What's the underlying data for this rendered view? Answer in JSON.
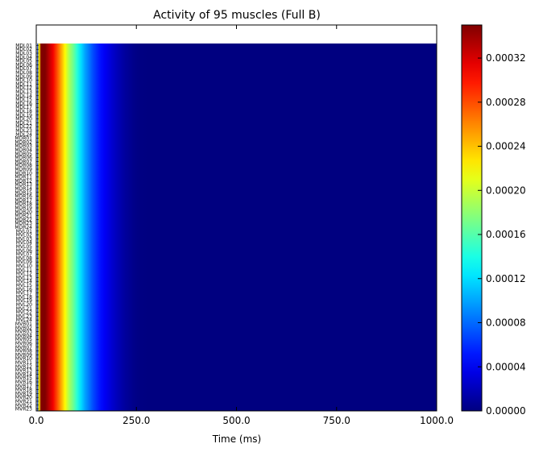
{
  "chart_data": {
    "type": "heatmap",
    "title": "Activity of 95 muscles (Full B)",
    "xlabel": "Time (ms)",
    "ylabel": "",
    "xlim": [
      0,
      1000
    ],
    "x_ticks": [
      "0.0",
      "250.0",
      "500.0",
      "750.0",
      "1000.0"
    ],
    "x_tick_values": [
      0,
      250,
      500,
      750,
      1000
    ],
    "colormap": "jet",
    "colorbar": {
      "vmin": 0,
      "vmax": 0.00035,
      "ticks": [
        "0.00000",
        "0.00004",
        "0.00008",
        "0.00012",
        "0.00016",
        "0.00020",
        "0.00024",
        "0.00028",
        "0.00032"
      ],
      "tick_values": [
        0,
        4e-05,
        8e-05,
        0.00012,
        0.00016,
        0.0002,
        0.00024,
        0.00028,
        0.00032
      ],
      "position": "right"
    },
    "muscle_rows_total": 95,
    "muscles": [
      "MDL01",
      "MDL02",
      "MDL03",
      "MDL04",
      "MDL05",
      "MDL06",
      "MDL07",
      "MDL08",
      "MDL09",
      "MDL10",
      "MDL11",
      "MDL12",
      "MDL13",
      "MDL14",
      "MDL15",
      "MDL16",
      "MDL17",
      "MDL18",
      "MDL19",
      "MDL20",
      "MDL21",
      "MDL22",
      "MDL23",
      "MDL24",
      "MDR01",
      "MDR02",
      "MDR03",
      "MDR04",
      "MDR05",
      "MDR06",
      "MDR07",
      "MDR08",
      "MDR09",
      "MDR10",
      "MDR11",
      "MDR12",
      "MDR13",
      "MDR14",
      "MDR15",
      "MDR16",
      "MDR17",
      "MDR18",
      "MDR19",
      "MDR20",
      "MDR21",
      "MDR22",
      "MDR23",
      "MDR24",
      "MVL01",
      "MVL02",
      "MVL03",
      "MVL04",
      "MVL05",
      "MVL06",
      "MVL07",
      "MVL08",
      "MVL09",
      "MVL10",
      "MVL11",
      "MVL12",
      "MVL13",
      "MVL14",
      "MVL15",
      "MVL16",
      "MVL17",
      "MVL18",
      "MVL19",
      "MVL20",
      "MVL21",
      "MVL22",
      "MVL23",
      "MVL24",
      "MVR01",
      "MVR02",
      "MVR03",
      "MVR04",
      "MVR05",
      "MVR06",
      "MVR07",
      "MVR08",
      "MVR09",
      "MVR10",
      "MVR11",
      "MVR12",
      "MVR13",
      "MVR14",
      "MVR15",
      "MVR16",
      "MVR17",
      "MVR18",
      "MVR19",
      "MVR20",
      "MVR21",
      "MVR22",
      "MVR23"
    ],
    "activity_profile": {
      "time_ms": [
        0,
        5,
        10,
        20,
        30,
        40,
        50,
        60,
        70,
        80,
        90,
        100,
        110,
        120,
        130,
        140,
        150,
        160,
        170,
        180,
        190,
        200,
        210,
        220,
        230,
        240,
        250,
        260,
        270,
        280,
        1000
      ],
      "value": [
        6e-05,
        0.00022,
        0.00035,
        0.00035,
        0.00033,
        0.00031,
        0.00028,
        0.00025,
        0.00022,
        0.00019,
        0.00017,
        0.000145,
        0.00012,
        0.0001,
        8.5e-05,
        7e-05,
        5.8e-05,
        4.8e-05,
        4e-05,
        3.3e-05,
        2.6e-05,
        2e-05,
        1.5e-05,
        1e-05,
        7e-06,
        4e-06,
        2e-06,
        1e-06,
        5e-07,
        0.0,
        0.0
      ]
    }
  }
}
